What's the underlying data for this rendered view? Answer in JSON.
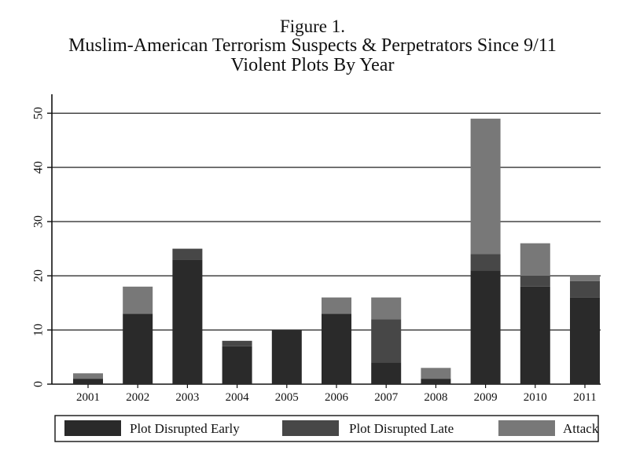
{
  "chart_data": {
    "type": "bar",
    "stacked": true,
    "title": "Figure 1.",
    "subtitle_line1": "Muslim-American Terrorism Suspects & Perpetrators Since 9/11",
    "subtitle_line2": "Violent Plots By Year",
    "xlabel": "",
    "ylabel": "",
    "ylim": [
      0,
      50
    ],
    "yticks": [
      "0",
      "10",
      "20",
      "30",
      "40",
      "50"
    ],
    "grid": true,
    "legend_position": "bottom",
    "categories": [
      "2001",
      "2002",
      "2003",
      "2004",
      "2005",
      "2006",
      "2007",
      "2008",
      "2009",
      "2010",
      "2011"
    ],
    "series": [
      {
        "name": "Plot Disrupted Early",
        "color": "#2a2a2a",
        "values": [
          1,
          13,
          23,
          7,
          10,
          13,
          4,
          1,
          21,
          18,
          16
        ]
      },
      {
        "name": "Plot Disrupted Late",
        "color": "#474747",
        "values": [
          0,
          0,
          2,
          1,
          0,
          0,
          8,
          0,
          3,
          2,
          3
        ]
      },
      {
        "name": "Attack",
        "color": "#787878",
        "values": [
          1,
          5,
          0,
          0,
          0,
          3,
          4,
          2,
          25,
          6,
          1
        ]
      }
    ]
  }
}
